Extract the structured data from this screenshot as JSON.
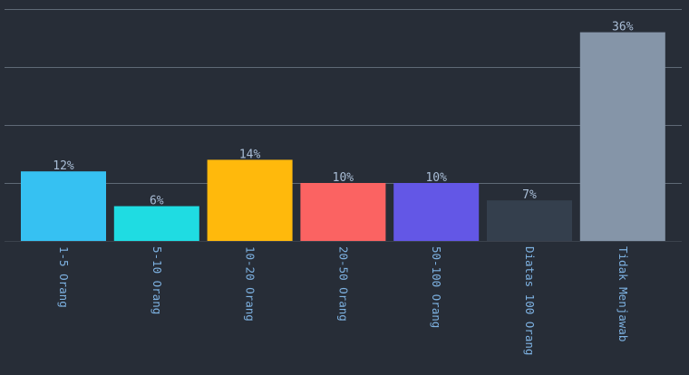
{
  "chart_data": {
    "type": "bar",
    "title": "",
    "xlabel": "",
    "ylabel": "",
    "categories": [
      "1-5 Orang",
      "5-10 Orang",
      "10-20 Orang",
      "20-50 Orang",
      "50-100 Orang",
      "Diatas 100 Orang",
      "Tidak Menjawab"
    ],
    "values": [
      12,
      6,
      14,
      10,
      10,
      7,
      36
    ],
    "value_labels": [
      "12%",
      "6%",
      "14%",
      "10%",
      "10%",
      "7%",
      "36%"
    ],
    "colors": [
      "#36c1f2",
      "#1fdce2",
      "#ffb90c",
      "#fb6362",
      "#6357e6",
      "#343f4d",
      "#8595a8"
    ],
    "ylim": [
      0,
      40
    ],
    "grid": true,
    "legend": "none"
  }
}
